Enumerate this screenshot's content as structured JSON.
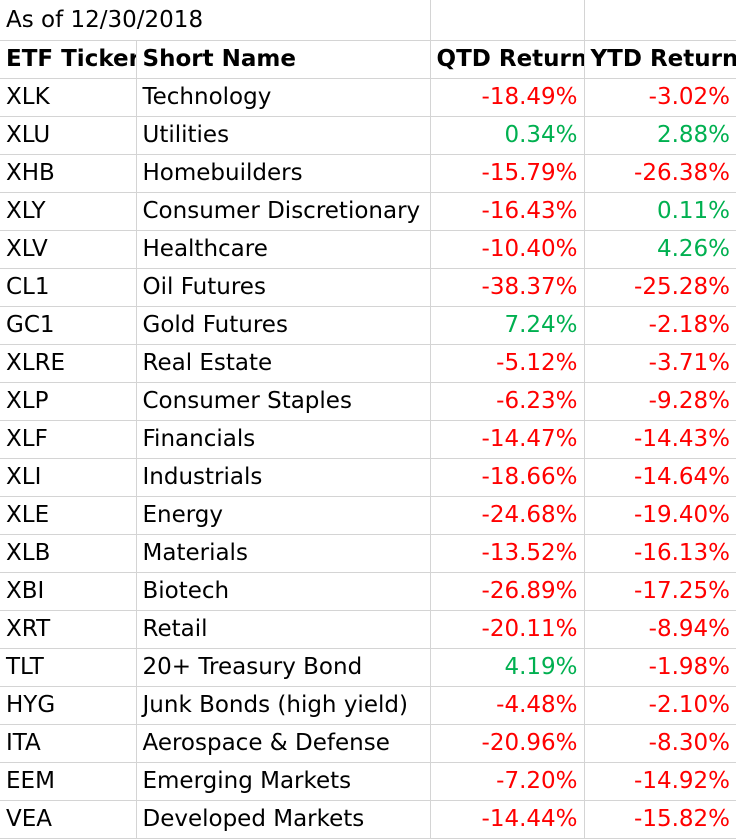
{
  "as_of": "As of 12/30/2018",
  "headers": {
    "ticker": "ETF Ticker",
    "name": "Short Name",
    "qtd": "QTD Return",
    "ytd": "YTD Return"
  },
  "colors": {
    "negative": "#ff0000",
    "positive": "#00b050",
    "gridline": "#d4d4d4"
  },
  "rows": [
    {
      "ticker": "XLK",
      "name": "Technology",
      "qtd": "-18.49%",
      "ytd": "-3.02%"
    },
    {
      "ticker": "XLU",
      "name": "Utilities",
      "qtd": "0.34%",
      "ytd": "2.88%"
    },
    {
      "ticker": "XHB",
      "name": "Homebuilders",
      "qtd": "-15.79%",
      "ytd": "-26.38%"
    },
    {
      "ticker": "XLY",
      "name": "Consumer Discretionary",
      "qtd": "-16.43%",
      "ytd": "0.11%"
    },
    {
      "ticker": "XLV",
      "name": "Healthcare",
      "qtd": "-10.40%",
      "ytd": "4.26%"
    },
    {
      "ticker": "CL1",
      "name": "Oil Futures",
      "qtd": "-38.37%",
      "ytd": "-25.28%"
    },
    {
      "ticker": "GC1",
      "name": "Gold Futures",
      "qtd": "7.24%",
      "ytd": "-2.18%"
    },
    {
      "ticker": "XLRE",
      "name": "Real Estate",
      "qtd": "-5.12%",
      "ytd": "-3.71%"
    },
    {
      "ticker": "XLP",
      "name": "Consumer Staples",
      "qtd": "-6.23%",
      "ytd": "-9.28%"
    },
    {
      "ticker": "XLF",
      "name": "Financials",
      "qtd": "-14.47%",
      "ytd": "-14.43%"
    },
    {
      "ticker": "XLI",
      "name": "Industrials",
      "qtd": "-18.66%",
      "ytd": "-14.64%"
    },
    {
      "ticker": "XLE",
      "name": "Energy",
      "qtd": "-24.68%",
      "ytd": "-19.40%"
    },
    {
      "ticker": "XLB",
      "name": "Materials",
      "qtd": "-13.52%",
      "ytd": "-16.13%"
    },
    {
      "ticker": "XBI",
      "name": "Biotech",
      "qtd": "-26.89%",
      "ytd": "-17.25%"
    },
    {
      "ticker": "XRT",
      "name": "Retail",
      "qtd": "-20.11%",
      "ytd": "-8.94%"
    },
    {
      "ticker": "TLT",
      "name": "20+ Treasury Bond",
      "qtd": "4.19%",
      "ytd": "-1.98%"
    },
    {
      "ticker": "HYG",
      "name": "Junk Bonds (high yield)",
      "qtd": "-4.48%",
      "ytd": "-2.10%"
    },
    {
      "ticker": "ITA",
      "name": "Aerospace & Defense",
      "qtd": "-20.96%",
      "ytd": "-8.30%"
    },
    {
      "ticker": "EEM",
      "name": "Emerging Markets",
      "qtd": "-7.20%",
      "ytd": "-14.92%"
    },
    {
      "ticker": "VEA",
      "name": "Developed Markets",
      "qtd": "-14.44%",
      "ytd": "-15.82%"
    }
  ]
}
